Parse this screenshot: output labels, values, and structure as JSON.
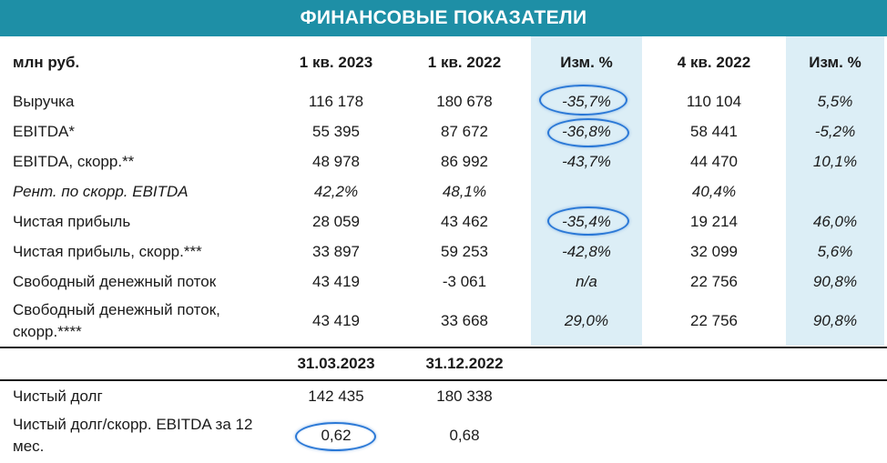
{
  "title": "ФИНАНСОВЫЕ ПОКАЗАТЕЛИ",
  "header": {
    "unit": "млн руб.",
    "col1": "1 кв. 2023",
    "col2": "1 кв. 2022",
    "col3": "Изм. %",
    "col4": "4 кв. 2022",
    "col5": "Изм. %"
  },
  "rows": [
    {
      "label": "Выручка",
      "c1": "116 178",
      "c2": "180 678",
      "c3": "-35,7%",
      "c4": "110 104",
      "c5": "5,5%"
    },
    {
      "label": "EBITDA*",
      "c1": "55 395",
      "c2": "87 672",
      "c3": "-36,8%",
      "c4": "58 441",
      "c5": "-5,2%"
    },
    {
      "label": "EBITDA, скорр.**",
      "c1": "48 978",
      "c2": "86 992",
      "c3": "-43,7%",
      "c4": "44 470",
      "c5": "10,1%"
    },
    {
      "label": "Рент. по скорр. EBITDA",
      "c1": "42,2%",
      "c2": "48,1%",
      "c3": "",
      "c4": "40,4%",
      "c5": ""
    },
    {
      "label": "Чистая прибыль",
      "c1": "28 059",
      "c2": "43 462",
      "c3": "-35,4%",
      "c4": "19 214",
      "c5": "46,0%"
    },
    {
      "label": "Чистая прибыль, скорр.***",
      "c1": "33 897",
      "c2": "59 253",
      "c3": "-42,8%",
      "c4": "32 099",
      "c5": "5,6%"
    },
    {
      "label": "Свободный денежный поток",
      "c1": "43 419",
      "c2": "-3 061",
      "c3": "n/a",
      "c4": "22 756",
      "c5": "90,8%"
    },
    {
      "label": "Свободный денежный поток, скорр.****",
      "c1": "43 419",
      "c2": "33 668",
      "c3": "29,0%",
      "c4": "22 756",
      "c5": "90,8%"
    }
  ],
  "balance_header": {
    "col1": "31.03.2023",
    "col2": "31.12.2022"
  },
  "balance_rows": [
    {
      "label": "Чистый долг",
      "c1": "142 435",
      "c2": "180 338"
    },
    {
      "label": "Чистый долг/скорр. EBITDA за 12 мес.",
      "c1": "0,62",
      "c2": "0,68"
    }
  ],
  "colors": {
    "banner": "#1e8fa6",
    "shade": "#dceef6",
    "highlight": "#2a78d6"
  }
}
